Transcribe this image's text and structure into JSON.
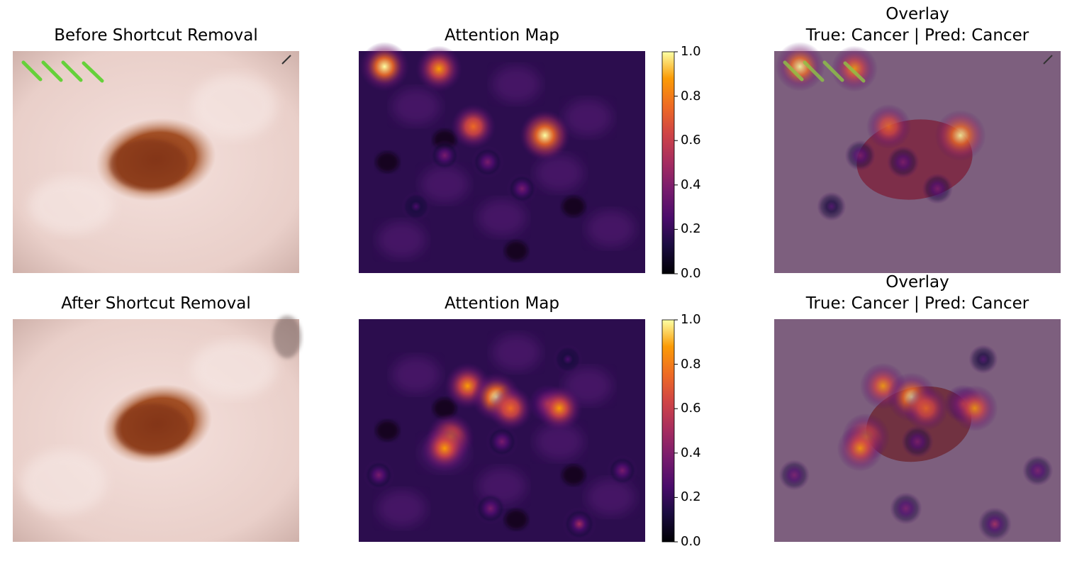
{
  "figure": {
    "row1": {
      "image_title": "Before Shortcut Removal",
      "map_title": "Attention Map",
      "overlay_title": "Overlay",
      "overlay_subtitle": "True: Cancer | Pred: Cancer"
    },
    "row2": {
      "image_title": "After Shortcut Removal",
      "map_title": "Attention Map",
      "overlay_title": "Overlay",
      "overlay_subtitle": "True: Cancer | Pred: Cancer"
    }
  },
  "chart_data": [
    {
      "type": "heatmap",
      "title": "Attention Map",
      "colormap": "inferno",
      "colorbar": {
        "range": [
          0.0,
          1.0
        ],
        "ticks": [
          "0.0",
          "0.2",
          "0.4",
          "0.6",
          "0.8",
          "1.0"
        ]
      },
      "hotspots": [
        {
          "u": 0.09,
          "v": 0.07,
          "value": 0.95
        },
        {
          "u": 0.28,
          "v": 0.08,
          "value": 0.85
        },
        {
          "u": 0.4,
          "v": 0.34,
          "value": 0.8
        },
        {
          "u": 0.65,
          "v": 0.38,
          "value": 1.0
        },
        {
          "u": 0.3,
          "v": 0.47,
          "value": 0.35
        },
        {
          "u": 0.45,
          "v": 0.5,
          "value": 0.4
        },
        {
          "u": 0.57,
          "v": 0.62,
          "value": 0.35
        },
        {
          "u": 0.2,
          "v": 0.7,
          "value": 0.3
        }
      ]
    },
    {
      "type": "heatmap",
      "title": "Attention Map",
      "colormap": "inferno",
      "colorbar": {
        "range": [
          0.0,
          1.0
        ],
        "ticks": [
          "0.0",
          "0.2",
          "0.4",
          "0.6",
          "0.8",
          "1.0"
        ]
      },
      "hotspots": [
        {
          "u": 0.38,
          "v": 0.3,
          "value": 0.85
        },
        {
          "u": 0.48,
          "v": 0.35,
          "value": 0.95
        },
        {
          "u": 0.53,
          "v": 0.4,
          "value": 0.8
        },
        {
          "u": 0.66,
          "v": 0.38,
          "value": 0.6
        },
        {
          "u": 0.7,
          "v": 0.4,
          "value": 0.85
        },
        {
          "u": 0.32,
          "v": 0.53,
          "value": 0.9
        },
        {
          "u": 0.3,
          "v": 0.58,
          "value": 0.85
        },
        {
          "u": 0.5,
          "v": 0.55,
          "value": 0.4
        },
        {
          "u": 0.07,
          "v": 0.7,
          "value": 0.35
        },
        {
          "u": 0.46,
          "v": 0.85,
          "value": 0.4
        },
        {
          "u": 0.77,
          "v": 0.92,
          "value": 0.45
        },
        {
          "u": 0.92,
          "v": 0.68,
          "value": 0.35
        },
        {
          "u": 0.73,
          "v": 0.18,
          "value": 0.3
        }
      ]
    }
  ]
}
